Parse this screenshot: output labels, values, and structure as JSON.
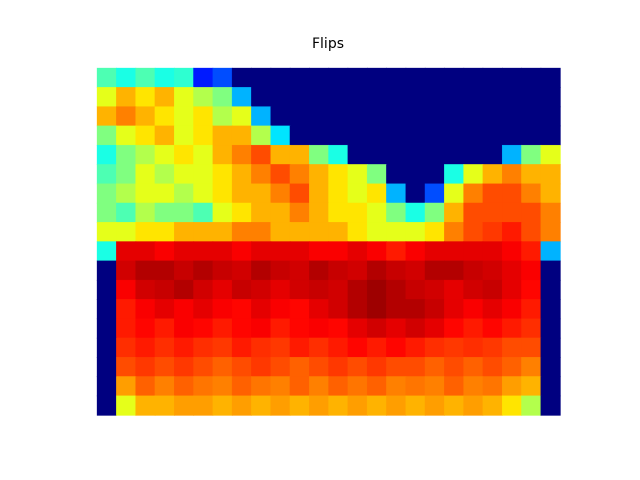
{
  "chart_data": {
    "type": "heatmap",
    "title": "Flips",
    "colormap": "jet",
    "zlim": [
      0,
      1
    ],
    "values": [
      [
        0.45,
        0.4,
        0.45,
        0.4,
        0.42,
        0.15,
        0.2,
        0,
        0,
        0,
        0,
        0,
        0,
        0,
        0,
        0,
        0,
        0,
        0,
        0,
        0,
        0,
        0,
        0
      ],
      [
        0.6,
        0.7,
        0.65,
        0.7,
        0.6,
        0.55,
        0.5,
        0.3,
        0,
        0,
        0,
        0,
        0,
        0,
        0,
        0,
        0,
        0,
        0,
        0,
        0,
        0,
        0,
        0
      ],
      [
        0.7,
        0.75,
        0.7,
        0.65,
        0.6,
        0.65,
        0.55,
        0.6,
        0.3,
        0,
        0,
        0,
        0,
        0,
        0,
        0,
        0,
        0,
        0,
        0,
        0,
        0,
        0,
        0
      ],
      [
        0.5,
        0.6,
        0.65,
        0.7,
        0.6,
        0.65,
        0.7,
        0.7,
        0.55,
        0.35,
        0,
        0,
        0,
        0,
        0,
        0,
        0,
        0,
        0,
        0,
        0,
        0,
        0,
        0
      ],
      [
        0.4,
        0.5,
        0.55,
        0.6,
        0.65,
        0.6,
        0.7,
        0.75,
        0.8,
        0.7,
        0.7,
        0.5,
        0.4,
        0,
        0,
        0,
        0,
        0,
        0,
        0,
        0,
        0.3,
        0.5,
        0.6
      ],
      [
        0.45,
        0.5,
        0.6,
        0.55,
        0.6,
        0.6,
        0.65,
        0.7,
        0.75,
        0.8,
        0.75,
        0.7,
        0.65,
        0.6,
        0.5,
        0,
        0,
        0,
        0.4,
        0.6,
        0.7,
        0.75,
        0.7,
        0.7
      ],
      [
        0.5,
        0.55,
        0.6,
        0.6,
        0.55,
        0.6,
        0.65,
        0.7,
        0.7,
        0.75,
        0.8,
        0.7,
        0.65,
        0.6,
        0.65,
        0.3,
        0,
        0.2,
        0.6,
        0.75,
        0.8,
        0.8,
        0.75,
        0.7
      ],
      [
        0.5,
        0.45,
        0.55,
        0.5,
        0.5,
        0.45,
        0.6,
        0.65,
        0.7,
        0.7,
        0.75,
        0.7,
        0.65,
        0.65,
        0.6,
        0.5,
        0.4,
        0.5,
        0.7,
        0.8,
        0.8,
        0.8,
        0.8,
        0.75
      ],
      [
        0.6,
        0.6,
        0.65,
        0.65,
        0.7,
        0.7,
        0.7,
        0.75,
        0.75,
        0.7,
        0.7,
        0.7,
        0.7,
        0.65,
        0.6,
        0.6,
        0.6,
        0.65,
        0.75,
        0.8,
        0.82,
        0.85,
        0.8,
        0.75
      ],
      [
        0.4,
        0.9,
        0.9,
        0.88,
        0.9,
        0.9,
        0.9,
        0.88,
        0.9,
        0.9,
        0.9,
        0.88,
        0.88,
        0.9,
        0.88,
        0.85,
        0.88,
        0.9,
        0.9,
        0.9,
        0.9,
        0.88,
        0.85,
        0.3
      ],
      [
        0,
        0.92,
        0.95,
        0.95,
        0.93,
        0.95,
        0.93,
        0.92,
        0.95,
        0.93,
        0.92,
        0.95,
        0.93,
        0.92,
        0.95,
        0.93,
        0.92,
        0.95,
        0.95,
        0.93,
        0.92,
        0.9,
        0.88,
        0
      ],
      [
        0,
        0.88,
        0.92,
        0.93,
        0.95,
        0.92,
        0.9,
        0.93,
        0.92,
        0.9,
        0.92,
        0.93,
        0.92,
        0.95,
        0.97,
        0.95,
        0.93,
        0.92,
        0.9,
        0.92,
        0.93,
        0.9,
        0.87,
        0
      ],
      [
        0,
        0.85,
        0.88,
        0.9,
        0.88,
        0.9,
        0.88,
        0.87,
        0.9,
        0.88,
        0.87,
        0.9,
        0.92,
        0.95,
        0.97,
        0.95,
        0.95,
        0.93,
        0.9,
        0.88,
        0.9,
        0.88,
        0.85,
        0
      ],
      [
        0,
        0.85,
        0.87,
        0.85,
        0.88,
        0.87,
        0.85,
        0.87,
        0.88,
        0.85,
        0.87,
        0.88,
        0.87,
        0.9,
        0.92,
        0.9,
        0.92,
        0.9,
        0.87,
        0.85,
        0.87,
        0.85,
        0.83,
        0
      ],
      [
        0,
        0.83,
        0.85,
        0.83,
        0.85,
        0.83,
        0.82,
        0.85,
        0.83,
        0.82,
        0.85,
        0.83,
        0.85,
        0.87,
        0.85,
        0.87,
        0.85,
        0.83,
        0.82,
        0.83,
        0.82,
        0.8,
        0.8,
        0
      ],
      [
        0,
        0.8,
        0.82,
        0.8,
        0.82,
        0.8,
        0.78,
        0.8,
        0.82,
        0.8,
        0.78,
        0.8,
        0.82,
        0.8,
        0.82,
        0.8,
        0.8,
        0.78,
        0.8,
        0.78,
        0.8,
        0.78,
        0.75,
        0
      ],
      [
        0,
        0.72,
        0.78,
        0.75,
        0.78,
        0.76,
        0.75,
        0.78,
        0.76,
        0.75,
        0.78,
        0.75,
        0.78,
        0.76,
        0.78,
        0.75,
        0.76,
        0.75,
        0.78,
        0.75,
        0.76,
        0.72,
        0.7,
        0
      ],
      [
        0,
        0.6,
        0.7,
        0.7,
        0.72,
        0.72,
        0.7,
        0.72,
        0.7,
        0.72,
        0.7,
        0.72,
        0.7,
        0.72,
        0.7,
        0.72,
        0.7,
        0.72,
        0.7,
        0.72,
        0.7,
        0.65,
        0.55,
        0
      ]
    ]
  }
}
